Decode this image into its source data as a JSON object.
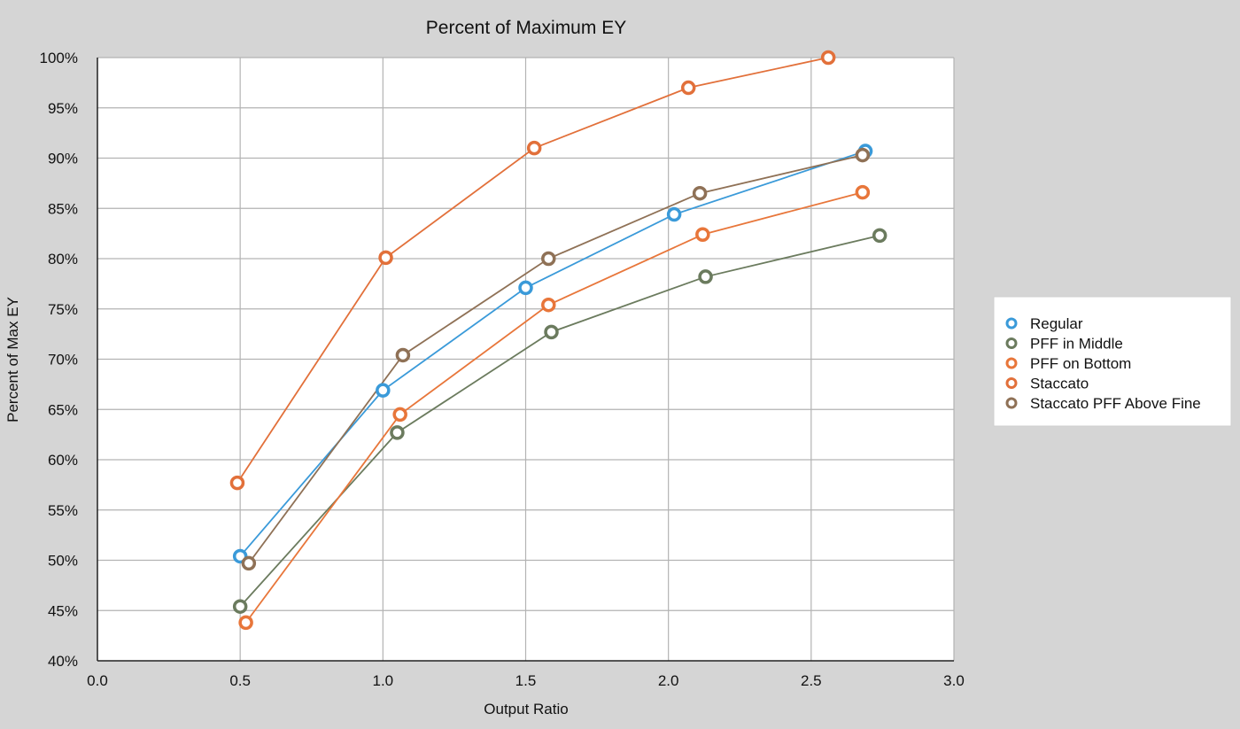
{
  "chart_data": {
    "type": "line",
    "title": "Percent of Maximum EY",
    "xlabel": "Output Ratio",
    "ylabel": "Percent of Max EY",
    "xlim": [
      0,
      3
    ],
    "ylim": [
      40,
      100
    ],
    "x_ticks": [
      "0.0",
      "0.5",
      "1.0",
      "1.5",
      "2.0",
      "2.5",
      "3.0"
    ],
    "x_tick_values": [
      0,
      0.5,
      1.0,
      1.5,
      2.0,
      2.5,
      3.0
    ],
    "y_ticks": [
      "40%",
      "45%",
      "50%",
      "55%",
      "60%",
      "65%",
      "70%",
      "75%",
      "80%",
      "85%",
      "90%",
      "95%",
      "100%"
    ],
    "y_tick_values": [
      40,
      45,
      50,
      55,
      60,
      65,
      70,
      75,
      80,
      85,
      90,
      95,
      100
    ],
    "grid": true,
    "legend_position": "right",
    "series": [
      {
        "name": "Regular",
        "color": "#3a9ad9",
        "points": [
          [
            0.5,
            50.4
          ],
          [
            1.0,
            66.9
          ],
          [
            1.5,
            77.1
          ],
          [
            2.02,
            84.4
          ],
          [
            2.69,
            90.7
          ]
        ]
      },
      {
        "name": "PFF in Middle",
        "color": "#6b7b5e",
        "points": [
          [
            0.5,
            45.4
          ],
          [
            1.05,
            62.7
          ],
          [
            1.59,
            72.7
          ],
          [
            2.13,
            78.2
          ],
          [
            2.74,
            82.3
          ]
        ]
      },
      {
        "name": "PFF on Bottom",
        "color": "#e8763a",
        "points": [
          [
            0.52,
            43.8
          ],
          [
            1.06,
            64.5
          ],
          [
            1.58,
            75.4
          ],
          [
            2.12,
            82.4
          ],
          [
            2.68,
            86.6
          ]
        ]
      },
      {
        "name": "Staccato",
        "color": "#e2703a",
        "points": [
          [
            0.49,
            57.7
          ],
          [
            1.01,
            80.1
          ],
          [
            1.53,
            91.0
          ],
          [
            2.07,
            97.0
          ],
          [
            2.56,
            100.0
          ]
        ]
      },
      {
        "name": "Staccato PFF Above Fine",
        "color": "#8f7156",
        "points": [
          [
            0.53,
            49.7
          ],
          [
            1.07,
            70.4
          ],
          [
            1.58,
            80.0
          ],
          [
            2.11,
            86.5
          ],
          [
            2.68,
            90.3
          ]
        ]
      }
    ]
  }
}
